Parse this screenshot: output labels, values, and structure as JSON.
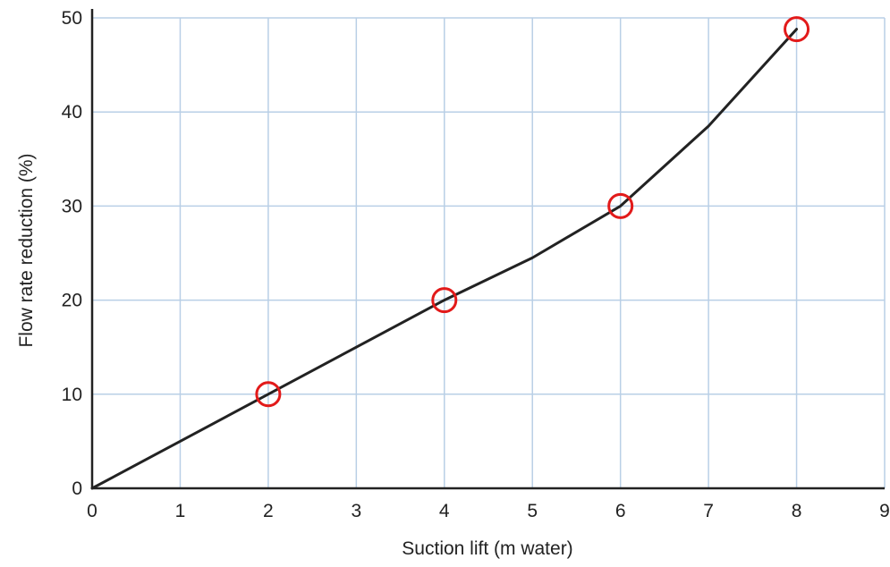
{
  "chart_data": {
    "type": "line",
    "title": "",
    "xlabel": "Suction lift (m water)",
    "ylabel": "Flow rate reduction (%)",
    "xlim": [
      0,
      9
    ],
    "ylim": [
      0,
      50
    ],
    "x_ticks": [
      0,
      1,
      2,
      3,
      4,
      5,
      6,
      7,
      8,
      9
    ],
    "y_ticks": [
      0,
      10,
      20,
      30,
      40,
      50
    ],
    "grid": true,
    "colors": {
      "grid": "#b9cfe6",
      "line": "#222222",
      "marker": "#e21a1a",
      "axis": "#222222"
    },
    "series": [
      {
        "x": [
          0,
          1,
          2,
          3,
          4,
          5,
          6,
          7,
          8
        ],
        "values": [
          0,
          5,
          10,
          15,
          20,
          24.5,
          30,
          38.5,
          48.8
        ]
      }
    ],
    "markers": {
      "style": "hollow-circle",
      "x": [
        2,
        4,
        6,
        8
      ],
      "values": [
        10,
        20,
        30,
        48.8
      ]
    }
  }
}
